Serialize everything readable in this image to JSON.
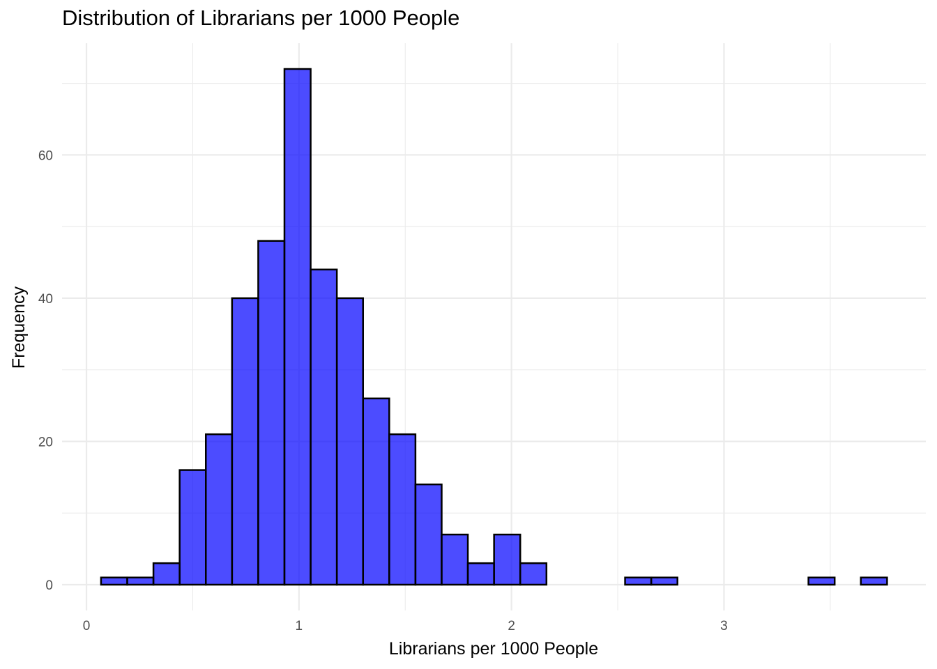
{
  "chart_data": {
    "type": "bar",
    "title": "Distribution of Librarians per 1000 People",
    "xlabel": "Librarians per 1000 People",
    "ylabel": "Frequency",
    "bin_width": 0.1233,
    "bins": [
      {
        "x0": 0.0685,
        "x1": 0.1918,
        "count": 1
      },
      {
        "x0": 0.1918,
        "x1": 0.3151,
        "count": 1
      },
      {
        "x0": 0.3151,
        "x1": 0.4384,
        "count": 3
      },
      {
        "x0": 0.4384,
        "x1": 0.5617,
        "count": 16
      },
      {
        "x0": 0.5617,
        "x1": 0.685,
        "count": 21
      },
      {
        "x0": 0.685,
        "x1": 0.8083,
        "count": 40
      },
      {
        "x0": 0.8083,
        "x1": 0.9316,
        "count": 48
      },
      {
        "x0": 0.9316,
        "x1": 1.0549,
        "count": 72
      },
      {
        "x0": 1.0549,
        "x1": 1.1782,
        "count": 44
      },
      {
        "x0": 1.1782,
        "x1": 1.3015,
        "count": 40
      },
      {
        "x0": 1.3015,
        "x1": 1.4248,
        "count": 26
      },
      {
        "x0": 1.4248,
        "x1": 1.5481,
        "count": 21
      },
      {
        "x0": 1.5481,
        "x1": 1.6714,
        "count": 14
      },
      {
        "x0": 1.6714,
        "x1": 1.7947,
        "count": 7
      },
      {
        "x0": 1.7947,
        "x1": 1.918,
        "count": 3
      },
      {
        "x0": 1.918,
        "x1": 2.0413,
        "count": 7
      },
      {
        "x0": 2.0413,
        "x1": 2.1646,
        "count": 3
      },
      {
        "x0": 2.1646,
        "x1": 2.2879,
        "count": 0
      },
      {
        "x0": 2.2879,
        "x1": 2.4112,
        "count": 0
      },
      {
        "x0": 2.4112,
        "x1": 2.5345,
        "count": 0
      },
      {
        "x0": 2.5345,
        "x1": 2.6578,
        "count": 1
      },
      {
        "x0": 2.6578,
        "x1": 2.7811,
        "count": 1
      },
      {
        "x0": 2.7811,
        "x1": 2.9044,
        "count": 0
      },
      {
        "x0": 2.9044,
        "x1": 3.0277,
        "count": 0
      },
      {
        "x0": 3.0277,
        "x1": 3.151,
        "count": 0
      },
      {
        "x0": 3.151,
        "x1": 3.2743,
        "count": 0
      },
      {
        "x0": 3.2743,
        "x1": 3.3976,
        "count": 0
      },
      {
        "x0": 3.3976,
        "x1": 3.5209,
        "count": 1
      },
      {
        "x0": 3.5209,
        "x1": 3.6442,
        "count": 0
      },
      {
        "x0": 3.6442,
        "x1": 3.7675,
        "count": 1
      }
    ],
    "x_ticks": [
      0,
      1,
      2,
      3
    ],
    "y_ticks": [
      0,
      20,
      40,
      60
    ],
    "xlim": [
      -0.115,
      3.95
    ],
    "ylim": [
      -3.6,
      75.6
    ],
    "grid": true,
    "colors": {
      "fill": "#0000ff",
      "fill_opacity": 0.7,
      "outline": "#000000",
      "grid": "#ebebeb"
    }
  }
}
